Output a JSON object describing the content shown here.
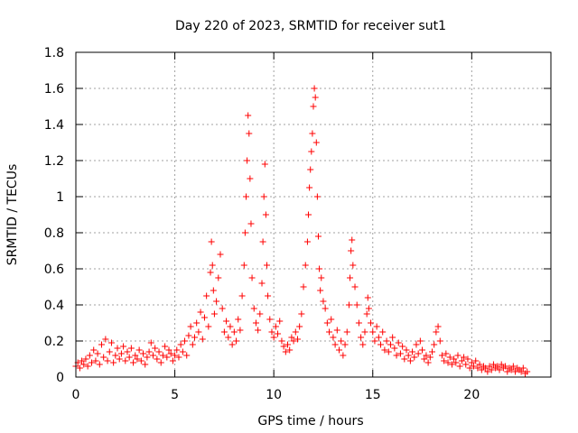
{
  "chart_data": {
    "type": "scatter",
    "title": "Day 220 of 2023, SRMTID for receiver sut1",
    "xlabel": "GPS time / hours",
    "ylabel": "SRMTID / TECUs",
    "xlim": [
      0,
      24
    ],
    "ylim": [
      0,
      1.8
    ],
    "xticks": [
      0,
      5,
      10,
      15,
      20
    ],
    "xtick_labels": [
      "0",
      "5",
      "10",
      "15",
      "20"
    ],
    "yticks": [
      0,
      0.2,
      0.4,
      0.6,
      0.8,
      1.0,
      1.2,
      1.4,
      1.6,
      1.8
    ],
    "ytick_labels": [
      "0",
      "0.2",
      "0.4",
      "0.6",
      "0.8",
      "1",
      "1.2",
      "1.4",
      "1.6",
      "1.8"
    ],
    "grid": true,
    "marker": "+",
    "series": [
      {
        "name": "sut1",
        "color": "#ff0000",
        "points": [
          [
            0.0,
            0.06
          ],
          [
            0.1,
            0.08
          ],
          [
            0.2,
            0.05
          ],
          [
            0.3,
            0.09
          ],
          [
            0.4,
            0.07
          ],
          [
            0.5,
            0.1
          ],
          [
            0.6,
            0.06
          ],
          [
            0.7,
            0.12
          ],
          [
            0.8,
            0.08
          ],
          [
            0.9,
            0.15
          ],
          [
            1.0,
            0.09
          ],
          [
            1.1,
            0.13
          ],
          [
            1.2,
            0.07
          ],
          [
            1.3,
            0.18
          ],
          [
            1.4,
            0.11
          ],
          [
            1.5,
            0.21
          ],
          [
            1.6,
            0.09
          ],
          [
            1.7,
            0.14
          ],
          [
            1.8,
            0.19
          ],
          [
            1.9,
            0.08
          ],
          [
            2.0,
            0.12
          ],
          [
            2.1,
            0.16
          ],
          [
            2.2,
            0.1
          ],
          [
            2.3,
            0.13
          ],
          [
            2.4,
            0.17
          ],
          [
            2.5,
            0.09
          ],
          [
            2.6,
            0.14
          ],
          [
            2.7,
            0.11
          ],
          [
            2.8,
            0.16
          ],
          [
            2.9,
            0.08
          ],
          [
            3.0,
            0.12
          ],
          [
            3.1,
            0.1
          ],
          [
            3.2,
            0.15
          ],
          [
            3.3,
            0.09
          ],
          [
            3.4,
            0.13
          ],
          [
            3.5,
            0.07
          ],
          [
            3.6,
            0.11
          ],
          [
            3.7,
            0.14
          ],
          [
            3.8,
            0.19
          ],
          [
            3.9,
            0.12
          ],
          [
            4.0,
            0.16
          ],
          [
            4.1,
            0.1
          ],
          [
            4.2,
            0.14
          ],
          [
            4.3,
            0.08
          ],
          [
            4.4,
            0.12
          ],
          [
            4.5,
            0.17
          ],
          [
            4.6,
            0.11
          ],
          [
            4.7,
            0.15
          ],
          [
            4.8,
            0.13
          ],
          [
            4.9,
            0.09
          ],
          [
            5.0,
            0.12
          ],
          [
            5.1,
            0.15
          ],
          [
            5.2,
            0.11
          ],
          [
            5.3,
            0.18
          ],
          [
            5.4,
            0.14
          ],
          [
            5.5,
            0.2
          ],
          [
            5.6,
            0.12
          ],
          [
            5.7,
            0.23
          ],
          [
            5.8,
            0.28
          ],
          [
            5.9,
            0.18
          ],
          [
            6.0,
            0.22
          ],
          [
            6.1,
            0.3
          ],
          [
            6.2,
            0.25
          ],
          [
            6.3,
            0.36
          ],
          [
            6.4,
            0.21
          ],
          [
            6.5,
            0.33
          ],
          [
            6.6,
            0.45
          ],
          [
            6.7,
            0.28
          ],
          [
            6.8,
            0.58
          ],
          [
            6.85,
            0.75
          ],
          [
            6.9,
            0.62
          ],
          [
            6.95,
            0.48
          ],
          [
            7.0,
            0.35
          ],
          [
            7.1,
            0.42
          ],
          [
            7.2,
            0.55
          ],
          [
            7.3,
            0.68
          ],
          [
            7.4,
            0.38
          ],
          [
            7.5,
            0.25
          ],
          [
            7.6,
            0.31
          ],
          [
            7.7,
            0.22
          ],
          [
            7.8,
            0.28
          ],
          [
            7.9,
            0.18
          ],
          [
            8.0,
            0.25
          ],
          [
            8.1,
            0.2
          ],
          [
            8.2,
            0.32
          ],
          [
            8.3,
            0.26
          ],
          [
            8.4,
            0.45
          ],
          [
            8.5,
            0.62
          ],
          [
            8.55,
            0.8
          ],
          [
            8.6,
            1.0
          ],
          [
            8.65,
            1.2
          ],
          [
            8.7,
            1.45
          ],
          [
            8.75,
            1.35
          ],
          [
            8.8,
            1.1
          ],
          [
            8.85,
            0.85
          ],
          [
            8.9,
            0.55
          ],
          [
            9.0,
            0.38
          ],
          [
            9.1,
            0.3
          ],
          [
            9.2,
            0.26
          ],
          [
            9.3,
            0.35
          ],
          [
            9.4,
            0.52
          ],
          [
            9.45,
            0.75
          ],
          [
            9.5,
            1.0
          ],
          [
            9.55,
            1.18
          ],
          [
            9.6,
            0.9
          ],
          [
            9.65,
            0.62
          ],
          [
            9.7,
            0.45
          ],
          [
            9.8,
            0.32
          ],
          [
            9.9,
            0.25
          ],
          [
            10.0,
            0.22
          ],
          [
            10.1,
            0.28
          ],
          [
            10.2,
            0.24
          ],
          [
            10.3,
            0.31
          ],
          [
            10.4,
            0.2
          ],
          [
            10.5,
            0.17
          ],
          [
            10.6,
            0.14
          ],
          [
            10.7,
            0.18
          ],
          [
            10.8,
            0.15
          ],
          [
            10.9,
            0.22
          ],
          [
            11.0,
            0.2
          ],
          [
            11.1,
            0.25
          ],
          [
            11.2,
            0.21
          ],
          [
            11.3,
            0.28
          ],
          [
            11.4,
            0.35
          ],
          [
            11.5,
            0.5
          ],
          [
            11.6,
            0.62
          ],
          [
            11.7,
            0.75
          ],
          [
            11.75,
            0.9
          ],
          [
            11.8,
            1.05
          ],
          [
            11.85,
            1.15
          ],
          [
            11.9,
            1.25
          ],
          [
            11.95,
            1.35
          ],
          [
            12.0,
            1.5
          ],
          [
            12.05,
            1.6
          ],
          [
            12.1,
            1.55
          ],
          [
            12.15,
            1.3
          ],
          [
            12.2,
            1.0
          ],
          [
            12.25,
            0.78
          ],
          [
            12.3,
            0.6
          ],
          [
            12.35,
            0.48
          ],
          [
            12.4,
            0.55
          ],
          [
            12.5,
            0.42
          ],
          [
            12.6,
            0.38
          ],
          [
            12.7,
            0.3
          ],
          [
            12.8,
            0.25
          ],
          [
            12.9,
            0.32
          ],
          [
            13.0,
            0.22
          ],
          [
            13.1,
            0.18
          ],
          [
            13.2,
            0.26
          ],
          [
            13.3,
            0.15
          ],
          [
            13.4,
            0.2
          ],
          [
            13.5,
            0.12
          ],
          [
            13.6,
            0.18
          ],
          [
            13.7,
            0.25
          ],
          [
            13.8,
            0.4
          ],
          [
            13.85,
            0.55
          ],
          [
            13.9,
            0.7
          ],
          [
            13.95,
            0.76
          ],
          [
            14.0,
            0.62
          ],
          [
            14.1,
            0.5
          ],
          [
            14.2,
            0.4
          ],
          [
            14.3,
            0.3
          ],
          [
            14.4,
            0.22
          ],
          [
            14.5,
            0.18
          ],
          [
            14.6,
            0.25
          ],
          [
            14.7,
            0.35
          ],
          [
            14.75,
            0.44
          ],
          [
            14.8,
            0.38
          ],
          [
            14.9,
            0.3
          ],
          [
            15.0,
            0.25
          ],
          [
            15.1,
            0.2
          ],
          [
            15.2,
            0.28
          ],
          [
            15.3,
            0.22
          ],
          [
            15.4,
            0.18
          ],
          [
            15.5,
            0.25
          ],
          [
            15.6,
            0.15
          ],
          [
            15.7,
            0.2
          ],
          [
            15.8,
            0.14
          ],
          [
            15.9,
            0.18
          ],
          [
            16.0,
            0.22
          ],
          [
            16.1,
            0.16
          ],
          [
            16.2,
            0.12
          ],
          [
            16.3,
            0.19
          ],
          [
            16.4,
            0.13
          ],
          [
            16.5,
            0.17
          ],
          [
            16.6,
            0.1
          ],
          [
            16.7,
            0.15
          ],
          [
            16.8,
            0.12
          ],
          [
            16.9,
            0.09
          ],
          [
            17.0,
            0.14
          ],
          [
            17.1,
            0.11
          ],
          [
            17.2,
            0.18
          ],
          [
            17.3,
            0.13
          ],
          [
            17.4,
            0.2
          ],
          [
            17.5,
            0.15
          ],
          [
            17.6,
            0.1
          ],
          [
            17.7,
            0.12
          ],
          [
            17.8,
            0.08
          ],
          [
            17.9,
            0.11
          ],
          [
            18.0,
            0.14
          ],
          [
            18.1,
            0.18
          ],
          [
            18.2,
            0.25
          ],
          [
            18.3,
            0.28
          ],
          [
            18.4,
            0.2
          ],
          [
            18.5,
            0.12
          ],
          [
            18.6,
            0.09
          ],
          [
            18.7,
            0.13
          ],
          [
            18.8,
            0.08
          ],
          [
            18.9,
            0.11
          ],
          [
            19.0,
            0.07
          ],
          [
            19.1,
            0.1
          ],
          [
            19.2,
            0.08
          ],
          [
            19.3,
            0.12
          ],
          [
            19.4,
            0.06
          ],
          [
            19.5,
            0.09
          ],
          [
            19.6,
            0.11
          ],
          [
            19.7,
            0.07
          ],
          [
            19.8,
            0.1
          ],
          [
            19.9,
            0.05
          ],
          [
            20.0,
            0.08
          ],
          [
            20.1,
            0.06
          ],
          [
            20.2,
            0.09
          ],
          [
            20.3,
            0.05
          ],
          [
            20.4,
            0.07
          ],
          [
            20.5,
            0.04
          ],
          [
            20.6,
            0.06
          ],
          [
            20.7,
            0.05
          ],
          [
            20.8,
            0.03
          ],
          [
            20.9,
            0.06
          ],
          [
            21.0,
            0.04
          ],
          [
            21.1,
            0.07
          ],
          [
            21.2,
            0.05
          ],
          [
            21.3,
            0.06
          ],
          [
            21.4,
            0.04
          ],
          [
            21.5,
            0.07
          ],
          [
            21.6,
            0.05
          ],
          [
            21.7,
            0.06
          ],
          [
            21.8,
            0.03
          ],
          [
            21.9,
            0.05
          ],
          [
            22.0,
            0.04
          ],
          [
            22.1,
            0.06
          ],
          [
            22.2,
            0.03
          ],
          [
            22.3,
            0.05
          ],
          [
            22.4,
            0.04
          ],
          [
            22.5,
            0.03
          ],
          [
            22.6,
            0.05
          ],
          [
            22.7,
            0.02
          ],
          [
            22.8,
            0.03
          ]
        ]
      }
    ]
  }
}
